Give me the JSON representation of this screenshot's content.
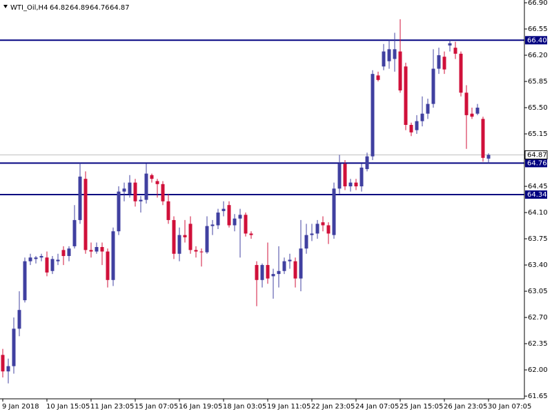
{
  "chart_data": {
    "type": "candlestick",
    "title": "WTI_Oil,H4",
    "categories": [
      "9 Jan 2018",
      null,
      null,
      null,
      null,
      null,
      null,
      null,
      "10 Jan 15:05",
      null,
      null,
      null,
      null,
      null,
      null,
      null,
      "11 Jan 23:05",
      null,
      null,
      null,
      null,
      null,
      null,
      null,
      "15 Jan 07:05",
      null,
      null,
      null,
      null,
      null,
      null,
      null,
      "16 Jan 19:05",
      null,
      null,
      null,
      null,
      null,
      null,
      null,
      "18 Jan 03:05",
      null,
      null,
      null,
      null,
      null,
      null,
      null,
      "19 Jan 11:05",
      null,
      null,
      null,
      null,
      null,
      null,
      null,
      "22 Jan 23:05",
      null,
      null,
      null,
      null,
      null,
      null,
      null,
      "24 Jan 07:05",
      null,
      null,
      null,
      null,
      null,
      null,
      null,
      "25 Jan 15:05",
      null,
      null,
      null,
      null,
      null,
      null,
      null,
      "26 Jan 23:05",
      null,
      null,
      null,
      null,
      null,
      null,
      null,
      "30 Jan 07:05"
    ],
    "open": [
      62.2,
      61.98,
      62.05,
      62.55,
      62.93,
      63.45,
      63.48,
      63.5,
      63.5,
      63.32,
      63.45,
      63.6,
      63.52,
      63.65,
      64.0,
      64.55,
      63.6,
      63.58,
      63.64,
      63.58,
      63.2,
      63.85,
      64.38,
      64.35,
      64.5,
      64.25,
      64.27,
      64.6,
      64.52,
      64.48,
      64.25,
      64.0,
      63.55,
      63.8,
      63.95,
      63.6,
      63.58,
      63.57,
      63.92,
      63.93,
      64.12,
      64.2,
      63.93,
      64.02,
      64.07,
      63.82,
      63.4,
      63.2,
      63.4,
      63.25,
      63.28,
      63.32,
      63.45,
      63.45,
      63.22,
      63.62,
      63.8,
      63.82,
      63.97,
      63.93,
      63.8,
      64.42,
      64.75,
      64.45,
      64.5,
      64.45,
      64.68,
      64.85,
      65.93,
      66.05,
      66.12,
      66.15,
      66.25,
      66.05,
      65.27,
      65.2,
      65.32,
      65.42,
      65.55,
      66.02,
      66.18,
      66.33,
      66.3,
      66.22,
      65.7,
      65.42,
      65.42,
      65.35,
      64.82
    ],
    "high": [
      62.28,
      62.15,
      62.7,
      63.05,
      63.5,
      63.55,
      63.52,
      63.55,
      63.58,
      63.52,
      63.55,
      63.65,
      63.65,
      64.2,
      64.76,
      64.65,
      63.7,
      63.7,
      63.7,
      63.62,
      63.9,
      64.45,
      64.5,
      64.6,
      64.55,
      64.32,
      64.75,
      64.62,
      64.55,
      64.52,
      64.35,
      64.05,
      63.9,
      64.0,
      64.05,
      63.65,
      63.62,
      64.05,
      64.0,
      64.15,
      64.25,
      64.25,
      64.08,
      64.15,
      64.1,
      63.85,
      63.45,
      63.42,
      63.7,
      63.35,
      63.65,
      63.5,
      63.55,
      63.5,
      64.0,
      63.95,
      63.95,
      64.0,
      64.05,
      63.97,
      64.5,
      64.87,
      64.8,
      64.55,
      64.55,
      64.75,
      64.9,
      66.0,
      65.98,
      66.35,
      66.4,
      66.5,
      66.68,
      66.1,
      65.3,
      65.4,
      65.65,
      65.62,
      66.28,
      66.3,
      66.25,
      66.4,
      66.38,
      66.25,
      65.8,
      65.5,
      65.55,
      65.38,
      64.89
    ],
    "low": [
      61.9,
      61.82,
      61.95,
      62.45,
      62.9,
      63.4,
      63.42,
      63.45,
      63.25,
      63.28,
      63.4,
      63.4,
      63.45,
      63.62,
      63.95,
      63.55,
      63.5,
      63.55,
      63.4,
      63.1,
      63.12,
      63.8,
      64.25,
      64.3,
      64.18,
      64.1,
      64.22,
      64.5,
      64.3,
      64.2,
      63.95,
      63.48,
      63.45,
      63.7,
      63.55,
      63.5,
      63.38,
      63.55,
      63.8,
      63.88,
      64.05,
      63.9,
      63.85,
      63.5,
      63.78,
      63.75,
      62.85,
      63.1,
      63.15,
      62.95,
      63.1,
      63.28,
      63.35,
      63.1,
      63.05,
      63.55,
      63.72,
      63.75,
      63.85,
      63.68,
      63.75,
      64.35,
      64.4,
      64.38,
      64.4,
      64.38,
      64.65,
      64.8,
      65.85,
      66.0,
      66.02,
      65.98,
      65.7,
      65.2,
      65.12,
      65.15,
      65.25,
      65.35,
      65.5,
      65.95,
      65.95,
      66.25,
      66.15,
      65.65,
      64.95,
      65.35,
      65.4,
      64.78,
      64.76
    ],
    "close": [
      61.98,
      62.05,
      62.55,
      62.8,
      63.45,
      63.5,
      63.5,
      63.52,
      63.3,
      63.48,
      63.47,
      63.52,
      63.62,
      64.0,
      64.58,
      63.6,
      63.58,
      63.64,
      63.58,
      63.2,
      63.85,
      64.38,
      64.42,
      64.5,
      64.25,
      64.27,
      64.62,
      64.55,
      64.48,
      64.25,
      64.0,
      63.55,
      63.8,
      63.77,
      63.6,
      63.58,
      63.57,
      63.92,
      63.94,
      64.1,
      64.15,
      63.93,
      64.02,
      64.07,
      63.82,
      63.8,
      63.2,
      63.4,
      63.22,
      63.28,
      63.32,
      63.45,
      63.47,
      63.22,
      63.62,
      63.8,
      63.82,
      63.95,
      63.93,
      63.82,
      64.42,
      64.75,
      64.45,
      64.5,
      64.45,
      64.7,
      64.85,
      65.95,
      65.87,
      66.25,
      66.28,
      66.28,
      65.73,
      65.27,
      65.17,
      65.32,
      65.42,
      65.55,
      66.02,
      66.2,
      66.01,
      66.36,
      66.22,
      65.7,
      65.4,
      65.38,
      65.5,
      64.83,
      64.87
    ],
    "up_color": "#4040a0",
    "down_color": "#d0103a",
    "ylim": [
      61.614,
      66.937
    ],
    "yticks": [
      {
        "value": 66.9,
        "label": "66.90"
      },
      {
        "value": 66.55,
        "label": "66.55"
      },
      {
        "value": 66.2,
        "label": "66.20"
      },
      {
        "value": 65.85,
        "label": "65.85"
      },
      {
        "value": 65.5,
        "label": "65.50"
      },
      {
        "value": 65.15,
        "label": "65.15"
      },
      {
        "value": 64.45,
        "label": "64.45"
      },
      {
        "value": 64.1,
        "label": "64.10"
      },
      {
        "value": 63.75,
        "label": "63.75"
      },
      {
        "value": 63.4,
        "label": "63.40"
      },
      {
        "value": 63.05,
        "label": "63.05"
      },
      {
        "value": 62.7,
        "label": "62.70"
      },
      {
        "value": 62.35,
        "label": "62.35"
      },
      {
        "value": 62.0,
        "label": "62.00"
      },
      {
        "value": 61.65,
        "label": "61.65"
      }
    ],
    "levels": [
      {
        "value": 66.4,
        "label": "66.40"
      },
      {
        "value": 64.76,
        "label": "64.76"
      },
      {
        "value": 64.34,
        "label": "64.34"
      }
    ],
    "level_color": "#000080"
  }
}
